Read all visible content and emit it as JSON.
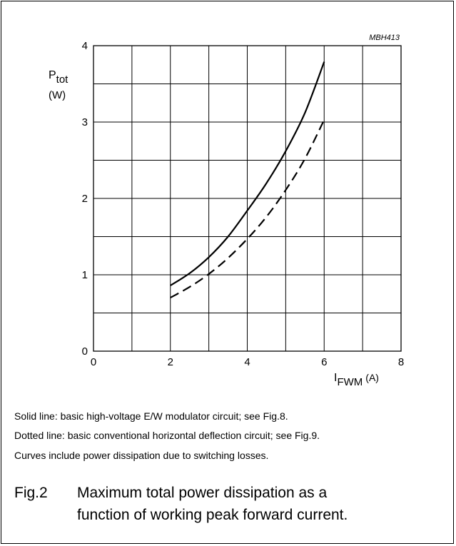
{
  "chart_data": {
    "type": "line",
    "ref_code": "MBH413",
    "xlabel": {
      "main": "I",
      "sub": "FWM",
      "unit": "(A)"
    },
    "ylabel": {
      "main": "P",
      "sub": "tot",
      "unit": "(W)"
    },
    "xlim": [
      0,
      8
    ],
    "ylim": [
      0,
      4
    ],
    "x_ticks": [
      0,
      2,
      4,
      6,
      8
    ],
    "y_ticks": [
      0,
      1,
      2,
      3,
      4
    ],
    "grid": {
      "x_step": 1,
      "y_step": 0.5
    },
    "series": [
      {
        "style": "solid",
        "x": [
          2.0,
          2.5,
          3.0,
          3.5,
          4.0,
          4.5,
          5.0,
          5.5,
          6.0
        ],
        "y": [
          0.86,
          1.02,
          1.23,
          1.5,
          1.84,
          2.2,
          2.62,
          3.12,
          3.79
        ]
      },
      {
        "style": "dashed",
        "x": [
          2.0,
          2.5,
          3.0,
          3.5,
          4.0,
          4.5,
          5.0,
          5.5,
          6.0
        ],
        "y": [
          0.7,
          0.84,
          1.01,
          1.22,
          1.47,
          1.76,
          2.11,
          2.52,
          3.03
        ]
      }
    ]
  },
  "notes": [
    "Solid line: basic high-voltage E/W modulator circuit; see Fig.8.",
    "Dotted line: basic conventional horizontal deflection circuit; see Fig.9.",
    "Curves include power dissipation due to switching losses."
  ],
  "caption": {
    "label": "Fig.2",
    "line1": "Maximum total power dissipation as a",
    "line2": "function of working peak forward current."
  }
}
